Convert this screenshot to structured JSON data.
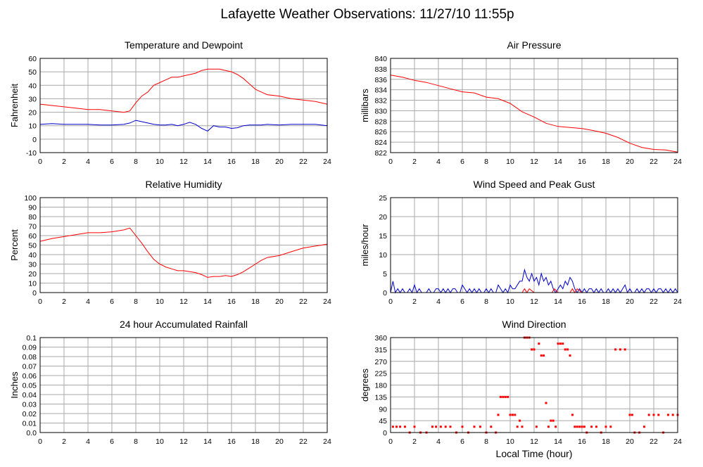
{
  "page": {
    "title": "Lafayette Weather Observations: 11/27/10 11:55p"
  },
  "colors": {
    "red": "#ff0000",
    "blue": "#0000cc",
    "grid": "#a8a8a8"
  },
  "chart_data": [
    {
      "type": "line",
      "title": "Temperature and Dewpoint",
      "xlabel": "",
      "ylabel": "Fahrenheit",
      "xlim": [
        0,
        24
      ],
      "ylim": [
        -10,
        60
      ],
      "xticks": [
        0,
        2,
        4,
        6,
        8,
        10,
        12,
        14,
        16,
        18,
        20,
        22,
        24
      ],
      "yticks": [
        -10,
        0,
        10,
        20,
        30,
        40,
        50,
        60
      ],
      "grid": true,
      "series": [
        {
          "color": "#ff0000",
          "x": [
            0,
            1,
            2,
            3,
            4,
            5,
            6,
            7,
            7.5,
            8,
            8.5,
            9,
            9.5,
            10,
            10.5,
            11,
            11.5,
            12,
            12.5,
            13,
            13.5,
            14,
            14.5,
            15,
            15.5,
            16,
            16.5,
            17,
            17.5,
            18,
            18.5,
            19,
            20,
            21,
            22,
            23,
            24
          ],
          "y": [
            26,
            25,
            24,
            23,
            22,
            22,
            21,
            20,
            21,
            27,
            32,
            35,
            40,
            42,
            44,
            46,
            46,
            47,
            48,
            49,
            51,
            52,
            52,
            52,
            51,
            50,
            48,
            45,
            41,
            37,
            35,
            33,
            32,
            30,
            29,
            28,
            26
          ]
        },
        {
          "color": "#0000cc",
          "x": [
            0,
            1,
            2,
            3,
            4,
            5,
            6,
            7,
            7.5,
            8,
            8.5,
            9,
            9.5,
            10,
            10.5,
            11,
            11.5,
            12,
            12.5,
            13,
            13.5,
            14,
            14.5,
            15,
            15.5,
            16,
            16.5,
            17,
            17.5,
            18,
            18.5,
            19,
            20,
            21,
            22,
            23,
            24
          ],
          "y": [
            11,
            11.5,
            11,
            11,
            11,
            10.5,
            10.5,
            11,
            12,
            14,
            13,
            12,
            11,
            10.5,
            10.5,
            11,
            10,
            11,
            12.5,
            11,
            8,
            6,
            10,
            9,
            9,
            8,
            8.5,
            10,
            10.5,
            10.5,
            10.5,
            11,
            10.5,
            11,
            11,
            11,
            10
          ]
        }
      ]
    },
    {
      "type": "line",
      "title": "Air Pressure",
      "xlabel": "",
      "ylabel": "millibars",
      "xlim": [
        0,
        24
      ],
      "ylim": [
        822,
        840
      ],
      "xticks": [
        0,
        2,
        4,
        6,
        8,
        10,
        12,
        14,
        16,
        18,
        20,
        22,
        24
      ],
      "yticks": [
        822,
        824,
        826,
        828,
        830,
        832,
        834,
        836,
        838,
        840
      ],
      "grid": true,
      "series": [
        {
          "color": "#ff0000",
          "x": [
            0,
            1,
            2,
            3,
            4,
            5,
            6,
            7,
            8,
            9,
            10,
            11,
            12,
            13,
            14,
            15,
            16,
            17,
            18,
            19,
            20,
            21,
            22,
            23,
            24
          ],
          "y": [
            836.8,
            836.4,
            835.8,
            835.4,
            834.8,
            834.2,
            833.6,
            833.4,
            832.6,
            832.3,
            831.4,
            829.8,
            828.8,
            827.6,
            827.0,
            826.8,
            826.6,
            826.2,
            825.7,
            824.9,
            823.8,
            823.0,
            822.6,
            822.5,
            822.1
          ]
        }
      ]
    },
    {
      "type": "line",
      "title": "Relative Humidity",
      "xlabel": "",
      "ylabel": "Percent",
      "xlim": [
        0,
        24
      ],
      "ylim": [
        0,
        100
      ],
      "xticks": [
        0,
        2,
        4,
        6,
        8,
        10,
        12,
        14,
        16,
        18,
        20,
        22,
        24
      ],
      "yticks": [
        0,
        10,
        20,
        30,
        40,
        50,
        60,
        70,
        80,
        90,
        100
      ],
      "grid": true,
      "series": [
        {
          "color": "#ff0000",
          "x": [
            0,
            1,
            2,
            3,
            4,
            5,
            6,
            7,
            7.5,
            8,
            8.5,
            9,
            9.5,
            10,
            10.5,
            11,
            11.5,
            12,
            12.5,
            13,
            13.5,
            14,
            14.5,
            15,
            15.5,
            16,
            16.5,
            17,
            17.5,
            18,
            18.5,
            19,
            20,
            21,
            22,
            23,
            24
          ],
          "y": [
            54,
            57,
            59,
            61,
            63,
            63,
            64,
            66,
            68,
            60,
            52,
            43,
            35,
            30,
            27,
            25,
            23,
            23,
            22,
            21,
            19,
            16,
            17,
            17,
            18,
            17,
            19,
            22,
            26,
            30,
            34,
            37,
            39,
            43,
            47,
            49,
            51
          ]
        }
      ]
    },
    {
      "type": "line",
      "title": "Wind Speed and Peak Gust",
      "xlabel": "",
      "ylabel": "miles/hour",
      "xlim": [
        0,
        24
      ],
      "ylim": [
        0,
        25
      ],
      "xticks": [
        0,
        2,
        4,
        6,
        8,
        10,
        12,
        14,
        16,
        18,
        20,
        22,
        24
      ],
      "yticks": [
        0,
        5,
        10,
        15,
        20,
        25
      ],
      "grid": true,
      "series": [
        {
          "color": "#0000cc",
          "x": [
            0,
            0.2,
            0.4,
            0.6,
            0.8,
            1,
            1.2,
            1.4,
            1.6,
            1.8,
            2,
            2.2,
            2.4,
            2.6,
            2.8,
            3,
            3.2,
            3.4,
            3.6,
            3.8,
            4,
            4.2,
            4.4,
            4.6,
            4.8,
            5,
            5.2,
            5.4,
            5.6,
            5.8,
            6,
            6.2,
            6.4,
            6.6,
            6.8,
            7,
            7.2,
            7.4,
            7.6,
            7.8,
            8,
            8.2,
            8.4,
            8.6,
            8.8,
            9,
            9.2,
            9.4,
            9.6,
            9.8,
            10,
            10.2,
            10.4,
            10.6,
            10.8,
            11,
            11.2,
            11.4,
            11.6,
            11.8,
            12,
            12.2,
            12.4,
            12.6,
            12.8,
            13,
            13.2,
            13.4,
            13.6,
            13.8,
            14,
            14.2,
            14.4,
            14.6,
            14.8,
            15,
            15.2,
            15.4,
            15.6,
            15.8,
            16,
            16.2,
            16.4,
            16.6,
            16.8,
            17,
            17.2,
            17.4,
            17.6,
            17.8,
            18,
            18.2,
            18.4,
            18.6,
            18.8,
            19,
            19.2,
            19.4,
            19.6,
            19.8,
            20,
            20.2,
            20.4,
            20.6,
            20.8,
            21,
            21.2,
            21.4,
            21.6,
            21.8,
            22,
            22.2,
            22.4,
            22.6,
            22.8,
            23,
            23.2,
            23.4,
            23.6,
            23.8,
            24
          ],
          "y": [
            0,
            3,
            0,
            1,
            0,
            1,
            0,
            0,
            1,
            0,
            2,
            0,
            1,
            0,
            0,
            0,
            1,
            0,
            0,
            1,
            1,
            0,
            1,
            0,
            1,
            0,
            1,
            1,
            0,
            0,
            2,
            1,
            0,
            1,
            0,
            1,
            0,
            1,
            0,
            0,
            1,
            0,
            1,
            0,
            0,
            2,
            1,
            0,
            1,
            0,
            2,
            1,
            1,
            2,
            3,
            3,
            6,
            4,
            3,
            5,
            3,
            4,
            2,
            5,
            3,
            4,
            2,
            3,
            1,
            0,
            1,
            2,
            1,
            3,
            2,
            4,
            3,
            1,
            0,
            1,
            0,
            1,
            0,
            1,
            1,
            0,
            1,
            0,
            1,
            0,
            0,
            1,
            0,
            1,
            0,
            1,
            0,
            1,
            2,
            0,
            1,
            0,
            0,
            1,
            0,
            1,
            0,
            1,
            1,
            0,
            1,
            0,
            1,
            1,
            0,
            1,
            0,
            1,
            0,
            1,
            0
          ]
        },
        {
          "color": "#ff0000",
          "x": [
            0,
            11,
            11.2,
            11.4,
            11.6,
            12,
            13.5,
            13.7,
            14,
            15,
            15.2,
            15.4,
            15.6,
            16,
            24
          ],
          "y": [
            0,
            0,
            1,
            0,
            1,
            0,
            0,
            1,
            0,
            0,
            1,
            0,
            1,
            0,
            0
          ]
        }
      ]
    },
    {
      "type": "line",
      "title": "24 hour Accumulated Rainfall",
      "xlabel": "",
      "ylabel": "Inches",
      "xlim": [
        0,
        24
      ],
      "ylim": [
        0,
        0.1
      ],
      "xticks": [
        0,
        2,
        4,
        6,
        8,
        10,
        12,
        14,
        16,
        18,
        20,
        22,
        24
      ],
      "yticks": [
        "0.0",
        "0.01",
        "0.02",
        "0.03",
        "0.04",
        "0.05",
        "0.06",
        "0.07",
        "0.08",
        "0.09",
        "0.1"
      ],
      "grid": true,
      "series": [
        {
          "color": "#ff0000",
          "x": [
            0,
            24
          ],
          "y": [
            0,
            0
          ]
        }
      ]
    },
    {
      "type": "scatter",
      "title": "Wind Direction",
      "xlabel": "Local Time (hour)",
      "ylabel": "degrees",
      "xlim": [
        0,
        24
      ],
      "ylim": [
        0,
        360
      ],
      "xticks": [
        0,
        2,
        4,
        6,
        8,
        10,
        12,
        14,
        16,
        18,
        20,
        22,
        24
      ],
      "yticks": [
        0,
        45,
        90,
        135,
        180,
        225,
        270,
        315,
        360
      ],
      "grid": true,
      "series": [
        {
          "color": "#ff0000",
          "x": [
            0.2,
            0.5,
            0.8,
            1.2,
            1.6,
            2,
            2.5,
            3,
            3.5,
            3.8,
            4.2,
            4.6,
            5,
            5.5,
            6,
            6.5,
            7,
            7.5,
            8,
            8.4,
            8.8,
            9,
            9.2,
            9.4,
            9.6,
            9.8,
            10,
            10.2,
            10.4,
            10.6,
            10.8,
            11,
            11.2,
            11.4,
            11.6,
            11.8,
            12,
            12.2,
            12.4,
            12.6,
            12.8,
            13,
            13.2,
            13.4,
            13.6,
            13.8,
            14,
            14.2,
            14.4,
            14.6,
            14.8,
            15,
            15.2,
            15.4,
            15.6,
            15.8,
            16,
            16.2,
            16.4,
            16.8,
            17.2,
            17.6,
            18,
            18.4,
            18.8,
            19.2,
            19.6,
            20,
            20.2,
            20.4,
            20.8,
            21.2,
            21.6,
            22,
            22.4,
            22.8,
            23.2,
            23.6,
            24
          ],
          "y": [
            22,
            22,
            22,
            22,
            0,
            22,
            0,
            0,
            22,
            22,
            22,
            22,
            22,
            0,
            22,
            0,
            22,
            22,
            0,
            22,
            0,
            67,
            135,
            135,
            135,
            135,
            67,
            67,
            67,
            22,
            45,
            22,
            360,
            360,
            360,
            315,
            315,
            22,
            337,
            292,
            292,
            112,
            22,
            45,
            45,
            22,
            337,
            337,
            337,
            315,
            315,
            292,
            67,
            22,
            22,
            22,
            22,
            22,
            0,
            22,
            22,
            0,
            22,
            22,
            315,
            315,
            315,
            67,
            67,
            0,
            0,
            22,
            67,
            67,
            67,
            0,
            67,
            67,
            67
          ]
        }
      ]
    }
  ]
}
